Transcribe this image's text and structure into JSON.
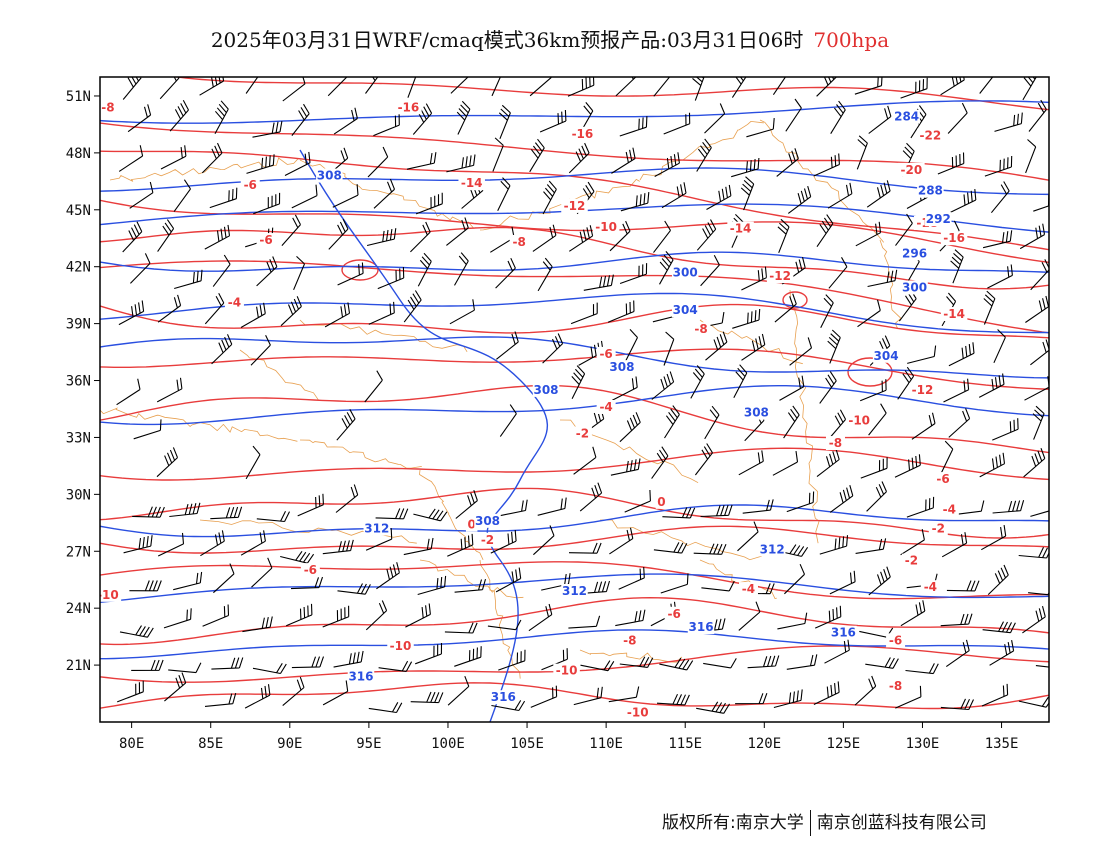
{
  "title": {
    "main": "2025年03月31日WRF/cmaq模式36km预报产品:03月31日06时",
    "level": "700hpa"
  },
  "axes": {
    "lat_labels": [
      "51N",
      "48N",
      "45N",
      "42N",
      "39N",
      "36N",
      "33N",
      "30N",
      "27N",
      "24N",
      "21N"
    ],
    "lat_values": [
      51,
      48,
      45,
      42,
      39,
      36,
      33,
      30,
      27,
      24,
      21
    ],
    "lon_labels": [
      "80E",
      "85E",
      "90E",
      "95E",
      "100E",
      "105E",
      "110E",
      "115E",
      "120E",
      "125E",
      "130E",
      "135E"
    ],
    "lon_values": [
      80,
      85,
      90,
      95,
      100,
      105,
      110,
      115,
      120,
      125,
      130,
      135
    ],
    "lon_range": [
      78,
      138
    ],
    "lat_range": [
      18,
      52
    ]
  },
  "colors": {
    "temperature": "#e83c3c",
    "height": "#2a4fe0",
    "border": "#e8a050",
    "barb": "#000000"
  },
  "temperature_labels": [
    {
      "text": "-8",
      "lon": 78.5,
      "lat": 50.3
    },
    {
      "text": "-16",
      "lon": 97.5,
      "lat": 50.3
    },
    {
      "text": "-16",
      "lon": 108.5,
      "lat": 48.9
    },
    {
      "text": "-22",
      "lon": 130.5,
      "lat": 48.8
    },
    {
      "text": "-6",
      "lon": 87.5,
      "lat": 46.2
    },
    {
      "text": "-14",
      "lon": 101.5,
      "lat": 46.3
    },
    {
      "text": "-20",
      "lon": 129.3,
      "lat": 47.0
    },
    {
      "text": "-12",
      "lon": 108.0,
      "lat": 45.1
    },
    {
      "text": "-10",
      "lon": 110.0,
      "lat": 44.0
    },
    {
      "text": "-14",
      "lon": 118.5,
      "lat": 43.9
    },
    {
      "text": "-18",
      "lon": 130.3,
      "lat": 44.2
    },
    {
      "text": "-16",
      "lon": 132.0,
      "lat": 43.4
    },
    {
      "text": "-6",
      "lon": 88.5,
      "lat": 43.3
    },
    {
      "text": "-8",
      "lon": 104.5,
      "lat": 43.2
    },
    {
      "text": "-12",
      "lon": 121.0,
      "lat": 41.4
    },
    {
      "text": "-4",
      "lon": 86.5,
      "lat": 40.0
    },
    {
      "text": "-8",
      "lon": 116.0,
      "lat": 38.6
    },
    {
      "text": "-14",
      "lon": 132.0,
      "lat": 39.4
    },
    {
      "text": "-6",
      "lon": 110.0,
      "lat": 37.3
    },
    {
      "text": "-12",
      "lon": 130.0,
      "lat": 35.4
    },
    {
      "text": "-4",
      "lon": 110.0,
      "lat": 34.5
    },
    {
      "text": "-10",
      "lon": 126.0,
      "lat": 33.8
    },
    {
      "text": "-2",
      "lon": 108.5,
      "lat": 33.1
    },
    {
      "text": "-8",
      "lon": 124.5,
      "lat": 32.6
    },
    {
      "text": "-6",
      "lon": 131.3,
      "lat": 30.7
    },
    {
      "text": "0",
      "lon": 113.5,
      "lat": 29.5
    },
    {
      "text": "-4",
      "lon": 131.7,
      "lat": 29.1
    },
    {
      "text": "0",
      "lon": 101.5,
      "lat": 28.3
    },
    {
      "text": "-2",
      "lon": 131.0,
      "lat": 28.1
    },
    {
      "text": "-2",
      "lon": 102.5,
      "lat": 27.5
    },
    {
      "text": "-6",
      "lon": 91.3,
      "lat": 25.9
    },
    {
      "text": "-2",
      "lon": 129.3,
      "lat": 26.4
    },
    {
      "text": "-4",
      "lon": 119.0,
      "lat": 24.9
    },
    {
      "text": "-4",
      "lon": 130.5,
      "lat": 25.0
    },
    {
      "text": "-10",
      "lon": 78.5,
      "lat": 24.6
    },
    {
      "text": "-6",
      "lon": 114.3,
      "lat": 23.6
    },
    {
      "text": "-6",
      "lon": 128.3,
      "lat": 22.2
    },
    {
      "text": "-10",
      "lon": 97.0,
      "lat": 21.9
    },
    {
      "text": "-8",
      "lon": 111.5,
      "lat": 22.2
    },
    {
      "text": "-10",
      "lon": 107.5,
      "lat": 20.6
    },
    {
      "text": "-8",
      "lon": 128.3,
      "lat": 19.8
    },
    {
      "text": "-10",
      "lon": 112.0,
      "lat": 18.4
    }
  ],
  "height_labels": [
    {
      "text": "284",
      "lon": 129.0,
      "lat": 49.8
    },
    {
      "text": "308",
      "lon": 92.5,
      "lat": 46.7
    },
    {
      "text": "288",
      "lon": 130.5,
      "lat": 45.9
    },
    {
      "text": "292",
      "lon": 131.0,
      "lat": 44.4
    },
    {
      "text": "296",
      "lon": 129.5,
      "lat": 42.6
    },
    {
      "text": "300",
      "lon": 115.0,
      "lat": 41.6
    },
    {
      "text": "300",
      "lon": 129.5,
      "lat": 40.8
    },
    {
      "text": "304",
      "lon": 115.0,
      "lat": 39.6
    },
    {
      "text": "304",
      "lon": 127.7,
      "lat": 37.2
    },
    {
      "text": "308",
      "lon": 106.2,
      "lat": 35.4
    },
    {
      "text": "308",
      "lon": 111.0,
      "lat": 36.6
    },
    {
      "text": "308",
      "lon": 119.5,
      "lat": 34.2
    },
    {
      "text": "308",
      "lon": 102.5,
      "lat": 28.5
    },
    {
      "text": "312",
      "lon": 95.5,
      "lat": 28.1
    },
    {
      "text": "312",
      "lon": 120.5,
      "lat": 27.0
    },
    {
      "text": "312",
      "lon": 108.0,
      "lat": 24.8
    },
    {
      "text": "316",
      "lon": 116.0,
      "lat": 22.9
    },
    {
      "text": "316",
      "lon": 125.0,
      "lat": 22.6
    },
    {
      "text": "316",
      "lon": 94.5,
      "lat": 20.3
    },
    {
      "text": "316",
      "lon": 103.5,
      "lat": 19.2
    }
  ],
  "footer": {
    "left": "版权所有:南京大学",
    "right": "南京创蓝科技有限公司"
  }
}
